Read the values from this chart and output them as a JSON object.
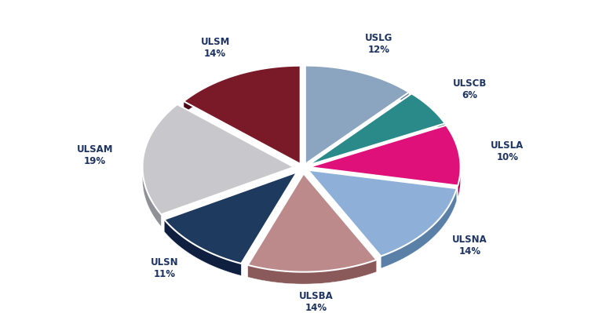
{
  "labels": [
    "USLG",
    "ULSCB",
    "ULSLA",
    "ULSNA",
    "ULSBA",
    "ULSN",
    "ULSAM",
    "ULSM"
  ],
  "values": [
    12,
    6,
    10,
    14,
    14,
    11,
    19,
    14
  ],
  "colors": [
    "#8BA4C0",
    "#2A8A8A",
    "#E0107A",
    "#8EB0D8",
    "#BC8A8A",
    "#1E3A5F",
    "#C8C8CC",
    "#7A1A28"
  ],
  "dark_colors": [
    "#5A7A96",
    "#1A6060",
    "#A00050",
    "#5A80A8",
    "#8A5A5A",
    "#0E1F3F",
    "#909098",
    "#4A0A18"
  ],
  "startangle": 90,
  "depth": 0.08,
  "label_color": "#1E3464",
  "background_color": "#FFFFFF"
}
